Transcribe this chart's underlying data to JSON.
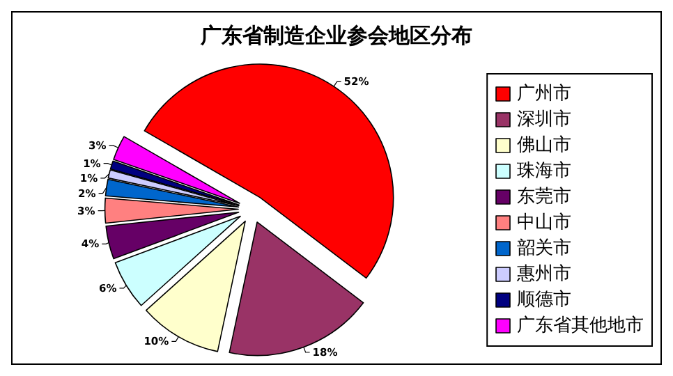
{
  "chart_data": {
    "type": "pie",
    "title": "广东省制造企业参会地区分布",
    "categories": [
      "广州市",
      "深圳市",
      "佛山市",
      "珠海市",
      "东莞市",
      "中山市",
      "韶关市",
      "惠州市",
      "顺德市",
      "广东省其他地市"
    ],
    "values": [
      52,
      18,
      10,
      6,
      4,
      3,
      2,
      1,
      1,
      3
    ],
    "value_labels": [
      "52%",
      "18%",
      "10%",
      "6%",
      "4%",
      "3%",
      "2%",
      "1%",
      "1%",
      "3%"
    ],
    "colors": [
      "#ff0000",
      "#993366",
      "#ffffcc",
      "#ccffff",
      "#660066",
      "#ff8080",
      "#0066cc",
      "#ccccff",
      "#000080",
      "#ff00ff"
    ],
    "legend": "right"
  }
}
